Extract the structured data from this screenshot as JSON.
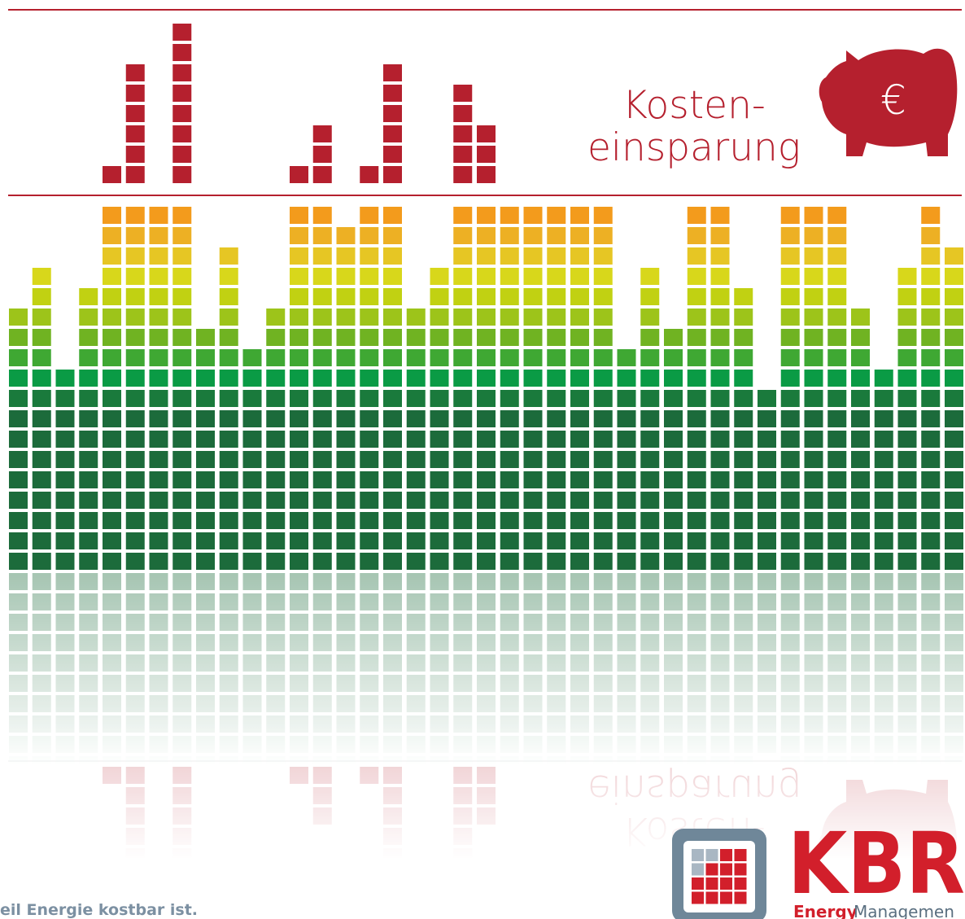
{
  "heading": {
    "line1": "Kosten-",
    "line2": "einsparung"
  },
  "piggy_bank": {
    "symbol": "€"
  },
  "equalizer": {
    "levels": [
      13,
      15,
      10,
      14,
      18,
      18,
      18,
      18,
      12,
      16,
      11,
      13,
      18,
      18,
      17,
      18,
      18,
      13,
      15,
      18,
      18,
      18,
      18,
      18,
      18,
      18,
      11,
      15,
      12,
      18,
      18,
      14,
      9,
      18,
      18,
      18,
      13,
      10,
      15,
      18,
      16
    ]
  },
  "savings": {
    "levels": [
      null,
      null,
      null,
      null,
      1,
      6,
      null,
      8,
      null,
      null,
      null,
      null,
      1,
      3,
      null,
      1,
      6,
      null,
      null,
      5,
      3,
      null,
      null,
      null,
      null,
      null,
      null,
      null,
      null,
      null,
      null,
      null,
      null,
      null,
      null,
      null,
      null,
      null,
      null,
      null,
      null
    ]
  },
  "logo": {
    "name": "KBR",
    "tagline_bold": "Energy",
    "tagline": "Managemen"
  },
  "slogan": "eil Energie kostbar ist."
}
